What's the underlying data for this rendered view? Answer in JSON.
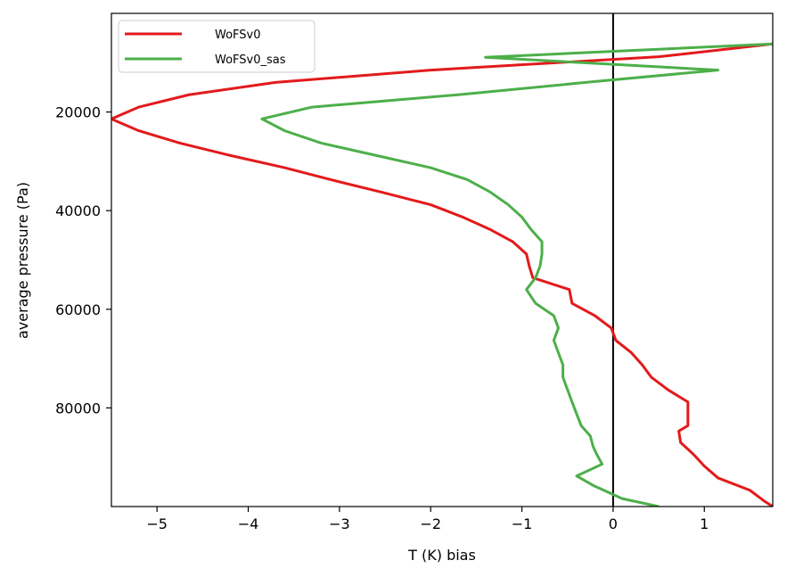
{
  "chart_data": {
    "type": "line",
    "xlabel": "T (K) bias",
    "ylabel": "average pressure (Pa)",
    "xlim": [
      -5.5,
      1.75
    ],
    "ylim": [
      100000,
      0
    ],
    "y_inverted": true,
    "xticks": [
      -5,
      -4,
      -3,
      -2,
      -1,
      0,
      1
    ],
    "xtick_labels": [
      "−5",
      "−4",
      "−3",
      "−2",
      "−1",
      "0",
      "1"
    ],
    "yticks": [
      20000,
      40000,
      60000,
      80000
    ],
    "ytick_labels": [
      "20000",
      "40000",
      "60000",
      "80000"
    ],
    "zero_line": {
      "x": 0,
      "color": "#000000"
    },
    "legend_position": "upper-left",
    "grid": false,
    "series": [
      {
        "name": "WoFSv0",
        "color": "#e31a1c",
        "points": [
          [
            1.75,
            6200
          ],
          [
            0.5,
            8800
          ],
          [
            -2.0,
            11500
          ],
          [
            -3.7,
            14000
          ],
          [
            -4.65,
            16500
          ],
          [
            -5.2,
            19000
          ],
          [
            -5.5,
            21400
          ],
          [
            -5.2,
            23800
          ],
          [
            -4.75,
            26300
          ],
          [
            -4.2,
            28800
          ],
          [
            -3.6,
            31300
          ],
          [
            -3.1,
            33700
          ],
          [
            -2.55,
            36200
          ],
          [
            -2.0,
            38800
          ],
          [
            -1.65,
            41300
          ],
          [
            -1.35,
            43800
          ],
          [
            -1.1,
            46300
          ],
          [
            -0.95,
            48800
          ],
          [
            -0.92,
            51200
          ],
          [
            -0.88,
            53600
          ],
          [
            -0.48,
            56000
          ],
          [
            -0.45,
            58800
          ],
          [
            -0.2,
            61300
          ],
          [
            -0.02,
            63800
          ],
          [
            0.03,
            66300
          ],
          [
            0.2,
            68800
          ],
          [
            0.32,
            71300
          ],
          [
            0.42,
            73800
          ],
          [
            0.6,
            76300
          ],
          [
            0.82,
            78800
          ],
          [
            0.82,
            81200
          ],
          [
            0.82,
            83600
          ],
          [
            0.72,
            84700
          ],
          [
            0.74,
            87000
          ],
          [
            0.88,
            89400
          ],
          [
            1.0,
            91800
          ],
          [
            1.15,
            94200
          ],
          [
            1.5,
            96700
          ],
          [
            1.65,
            98800
          ],
          [
            1.75,
            100000
          ]
        ]
      },
      {
        "name": "WoFSv0_sas",
        "color": "#4daf4a",
        "points": [
          [
            1.75,
            6200
          ],
          [
            -1.4,
            8900
          ],
          [
            1.15,
            11500
          ],
          [
            -0.3,
            14000
          ],
          [
            -1.7,
            16500
          ],
          [
            -3.3,
            19000
          ],
          [
            -3.85,
            21400
          ],
          [
            -3.6,
            23800
          ],
          [
            -3.2,
            26300
          ],
          [
            -2.6,
            28800
          ],
          [
            -2.0,
            31300
          ],
          [
            -1.6,
            33700
          ],
          [
            -1.35,
            36200
          ],
          [
            -1.15,
            38800
          ],
          [
            -1.0,
            41300
          ],
          [
            -0.9,
            43800
          ],
          [
            -0.78,
            46300
          ],
          [
            -0.78,
            48800
          ],
          [
            -0.8,
            51200
          ],
          [
            -0.85,
            53600
          ],
          [
            -0.95,
            56000
          ],
          [
            -0.85,
            58800
          ],
          [
            -0.65,
            61300
          ],
          [
            -0.6,
            63800
          ],
          [
            -0.65,
            66300
          ],
          [
            -0.6,
            68800
          ],
          [
            -0.55,
            71300
          ],
          [
            -0.55,
            73800
          ],
          [
            -0.5,
            76300
          ],
          [
            -0.45,
            78800
          ],
          [
            -0.4,
            81200
          ],
          [
            -0.35,
            83600
          ],
          [
            -0.25,
            85700
          ],
          [
            -0.22,
            87800
          ],
          [
            -0.18,
            89400
          ],
          [
            -0.12,
            91400
          ],
          [
            -0.4,
            93800
          ],
          [
            -0.22,
            95700
          ],
          [
            0.1,
            98400
          ],
          [
            0.5,
            100000
          ]
        ]
      }
    ]
  }
}
